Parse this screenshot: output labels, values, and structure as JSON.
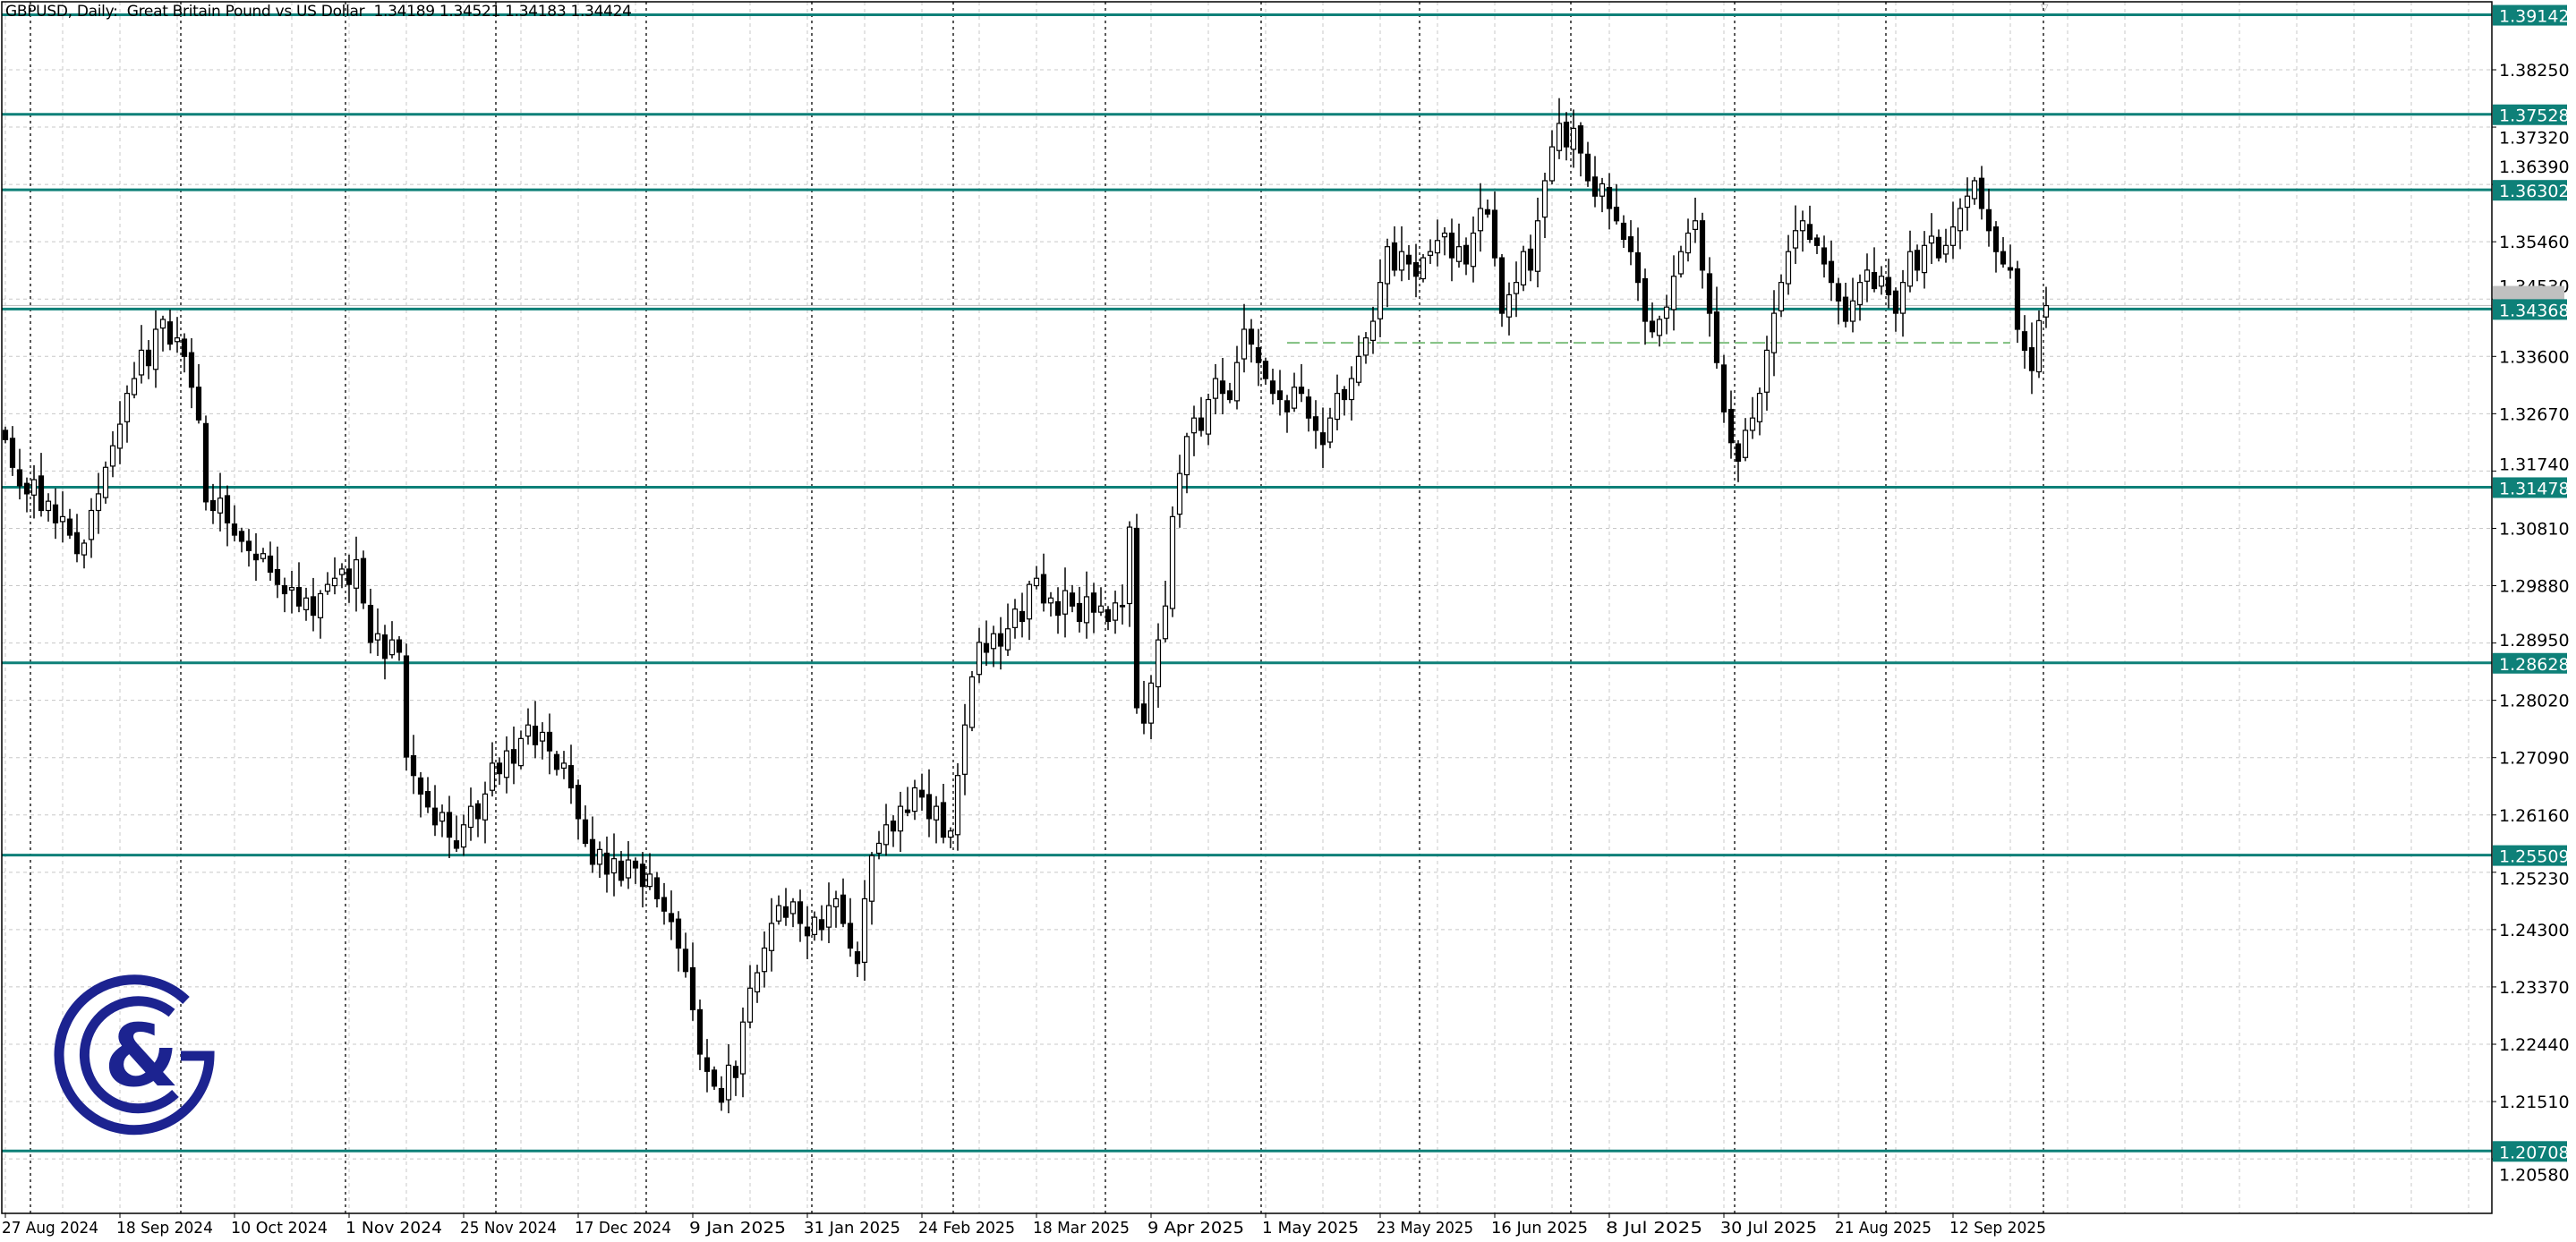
{
  "header": {
    "symbol": "GBPUSD",
    "timeframe": "Daily",
    "description": "Great Britain Pound vs US Dollar",
    "ohlc_text": "1.34189 1.34521 1.34183 1.34424",
    "full_text": "GBPUSD, Daily:  Great Britain Pound vs US Dollar  1.34189 1.34521 1.34183 1.34424"
  },
  "logo": {
    "text": "G&G",
    "color": "#1c2390"
  },
  "colors": {
    "level_line": "#0e8078",
    "level_label_bg": "#0e8078",
    "level_label_text": "#ffffff",
    "grid": "#c8c8c8",
    "separator": "#000000",
    "bull_body": "#ffffff",
    "bear_body": "#000000",
    "support_dash": "#7fbf7f",
    "current_price_bg": "#c0c0c0"
  },
  "chart_data": {
    "type": "candlestick",
    "title": "",
    "grid": true,
    "current_price": 1.34424,
    "y_ticks": [
      1.3825,
      1.3732,
      1.3639,
      1.3546,
      1.3453,
      1.336,
      1.3267,
      1.3174,
      1.3081,
      1.2988,
      1.2895,
      1.2802,
      1.2709,
      1.2616,
      1.2523,
      1.243,
      1.2337,
      1.2244,
      1.2151,
      1.2058
    ],
    "x_tick_labels": [
      {
        "bar": 0,
        "label": "27 Aug 2024"
      },
      {
        "bar": 16,
        "label": "18 Sep 2024"
      },
      {
        "bar": 32,
        "label": "10 Oct 2024"
      },
      {
        "bar": 48,
        "label": "1 Nov 2024"
      },
      {
        "bar": 64,
        "label": "25 Nov 2024"
      },
      {
        "bar": 80,
        "label": "17 Dec 2024"
      },
      {
        "bar": 96,
        "label": "9 Jan 2025"
      },
      {
        "bar": 112,
        "label": "31 Jan 2025"
      },
      {
        "bar": 128,
        "label": "24 Feb 2025"
      },
      {
        "bar": 144,
        "label": "18 Mar 2025"
      },
      {
        "bar": 160,
        "label": "9 Apr 2025"
      },
      {
        "bar": 176,
        "label": "1 May 2025"
      },
      {
        "bar": 192,
        "label": "23 May 2025"
      },
      {
        "bar": 208,
        "label": "16 Jun 2025"
      },
      {
        "bar": 224,
        "label": "8 Jul 2025"
      },
      {
        "bar": 240,
        "label": "30 Jul 2025"
      },
      {
        "bar": 256,
        "label": "21 Aug 2025"
      },
      {
        "bar": 272,
        "label": "12 Sep 2025"
      }
    ],
    "levels": [
      1.39142,
      1.37528,
      1.36302,
      1.34368,
      1.31478,
      1.28628,
      1.25509,
      1.20708
    ],
    "support_dashed": {
      "price": 1.3382,
      "from_bar": 179,
      "to_bar": 280
    },
    "close": [
      1.3225,
      1.318,
      1.315,
      1.3137,
      1.316,
      1.311,
      1.3125,
      1.309,
      1.31,
      1.307,
      1.304,
      1.3057,
      1.311,
      1.3137,
      1.318,
      1.3215,
      1.325,
      1.33,
      1.3324,
      1.337,
      1.3345,
      1.3404,
      1.342,
      1.338,
      1.339,
      1.336,
      1.331,
      1.3257,
      1.3124,
      1.311,
      1.313,
      1.309,
      1.307,
      1.306,
      1.3045,
      1.303,
      1.304,
      1.301,
      1.299,
      1.2975,
      1.2985,
      1.2955,
      1.2968,
      1.294,
      1.2975,
      1.299,
      1.3,
      1.3015,
      1.299,
      1.303,
      1.296,
      1.2896,
      1.291,
      1.287,
      1.29,
      1.288,
      1.271,
      1.268,
      1.265,
      1.2629,
      1.26,
      1.262,
      1.258,
      1.2562,
      1.26,
      1.263,
      1.261,
      1.265,
      1.27,
      1.2683,
      1.272,
      1.27,
      1.274,
      1.2762,
      1.273,
      1.275,
      1.272,
      1.269,
      1.27,
      1.266,
      1.261,
      1.257,
      1.2536,
      1.256,
      1.252,
      1.2545,
      1.251,
      1.2543,
      1.253,
      1.25,
      1.252,
      1.248,
      1.246,
      1.2443,
      1.24,
      1.2362,
      1.23,
      1.2228,
      1.22,
      1.2176,
      1.215,
      1.221,
      1.219,
      1.228,
      1.2335,
      1.236,
      1.24,
      1.244,
      1.2469,
      1.245,
      1.2475,
      1.244,
      1.242,
      1.245,
      1.243,
      1.2469,
      1.248,
      1.244,
      1.24,
      1.2375,
      1.248,
      1.255,
      1.257,
      1.26,
      1.259,
      1.263,
      1.262,
      1.266,
      1.2645,
      1.261,
      1.263,
      1.258,
      1.259,
      1.268,
      1.2762,
      1.284,
      1.2896,
      1.288,
      1.291,
      1.289,
      1.2918,
      1.295,
      1.293,
      1.299,
      1.3,
      1.296,
      1.2968,
      1.294,
      1.298,
      1.2955,
      1.293,
      1.297,
      1.2945,
      1.2955,
      1.293,
      1.296,
      1.2955,
      1.3083,
      1.279,
      1.2765,
      1.283,
      1.29,
      1.2955,
      1.31,
      1.317,
      1.323,
      1.326,
      1.324,
      1.329,
      1.3324,
      1.33,
      1.329,
      1.335,
      1.3404,
      1.338,
      1.335,
      1.3324,
      1.33,
      1.329,
      1.327,
      1.331,
      1.33,
      1.326,
      1.324,
      1.3217,
      1.326,
      1.33,
      1.329,
      1.3324,
      1.336,
      1.339,
      1.3417,
      1.348,
      1.3538,
      1.35,
      1.353,
      1.351,
      1.349,
      1.352,
      1.353,
      1.3548,
      1.356,
      1.352,
      1.3538,
      1.351,
      1.356,
      1.36,
      1.3591,
      1.352,
      1.343,
      1.346,
      1.348,
      1.353,
      1.35,
      1.358,
      1.3645,
      1.37,
      1.3738,
      1.37,
      1.373,
      1.369,
      1.3645,
      1.362,
      1.364,
      1.36,
      1.358,
      1.355,
      1.353,
      1.348,
      1.3417,
      1.34,
      1.342,
      1.344,
      1.349,
      1.353,
      1.356,
      1.358,
      1.35,
      1.343,
      1.335,
      1.327,
      1.322,
      1.319,
      1.324,
      1.326,
      1.33,
      1.337,
      1.343,
      1.348,
      1.353,
      1.3564,
      1.358,
      1.355,
      1.354,
      1.351,
      1.348,
      1.345,
      1.3417,
      1.345,
      1.348,
      1.35,
      1.347,
      1.349,
      1.346,
      1.343,
      1.348,
      1.353,
      1.35,
      1.354,
      1.3555,
      1.352,
      1.354,
      1.357,
      1.36,
      1.362,
      1.3645,
      1.36,
      1.3564,
      1.353,
      1.351,
      1.35,
      1.3404,
      1.337,
      1.3337,
      1.3418,
      1.34424
    ]
  }
}
